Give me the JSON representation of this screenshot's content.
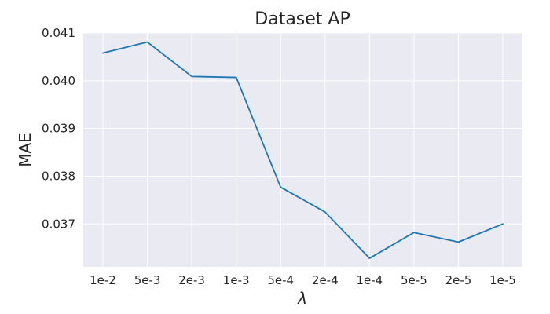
{
  "chart_data": {
    "type": "line",
    "title": "Dataset AP",
    "xlabel": "λ",
    "ylabel": "MAE",
    "categories": [
      "1e-2",
      "5e-3",
      "2e-3",
      "1e-3",
      "5e-4",
      "2e-4",
      "1e-4",
      "5e-5",
      "2e-5",
      "1e-5"
    ],
    "series": [
      {
        "values": [
          0.04058,
          0.04081,
          0.04009,
          0.04007,
          0.03777,
          0.03725,
          0.03628,
          0.03682,
          0.03662,
          0.037
        ]
      }
    ],
    "ylim": [
      0.0361,
      0.041
    ],
    "yticks": [
      "0.037",
      "0.038",
      "0.039",
      "0.040",
      "0.041"
    ],
    "grid": true,
    "background_color": "#eaeaf2",
    "grid_color": "#ffffff",
    "line_color": "#1f77b4"
  }
}
